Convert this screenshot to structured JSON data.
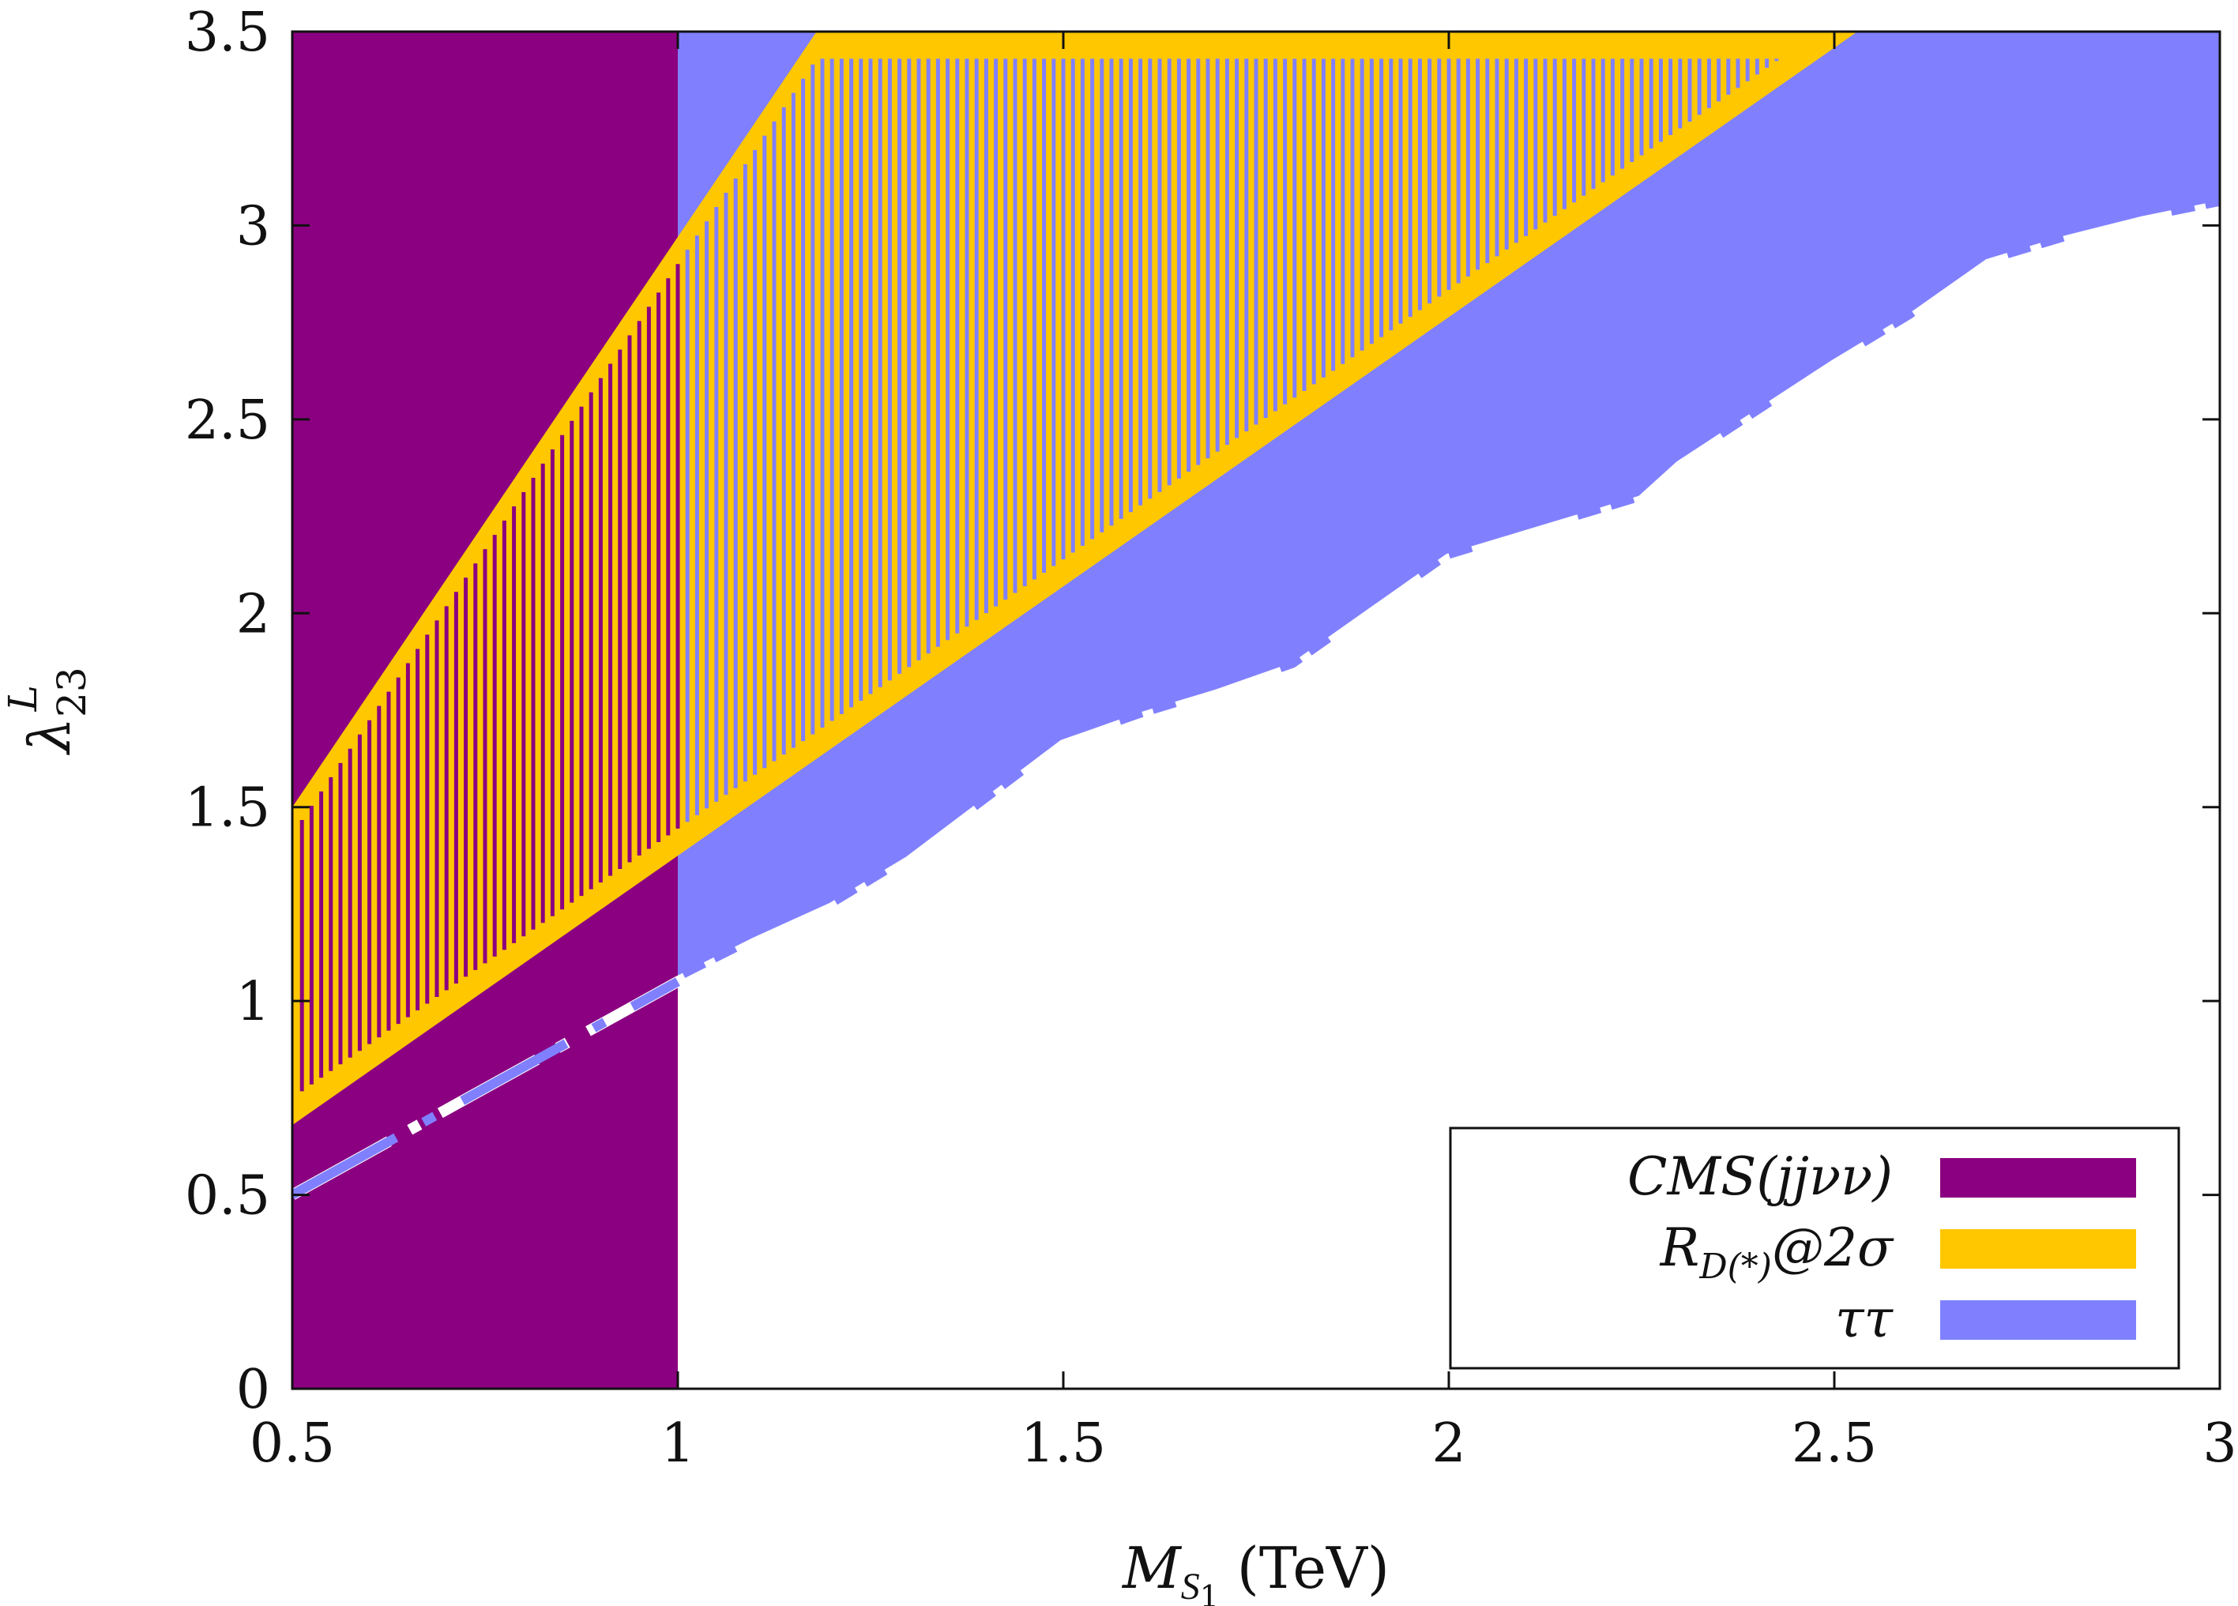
{
  "chart_data": {
    "type": "area",
    "xlabel": "M_S1 (TeV)",
    "ylabel": "λ_23^L",
    "xlim": [
      0.5,
      3
    ],
    "ylim": [
      0,
      3.5
    ],
    "xticks": [
      0.5,
      1,
      1.5,
      2,
      2.5,
      3
    ],
    "xtick_labels": [
      "0.5",
      "1",
      "1.5",
      "2",
      "2.5",
      "3"
    ],
    "yticks": [
      0,
      0.5,
      1,
      1.5,
      2,
      2.5,
      3,
      3.5
    ],
    "ytick_labels": [
      "0",
      "0.5",
      "1",
      "1.5",
      "2",
      "2.5",
      "3",
      "3.5"
    ],
    "grid": false,
    "legend_position": "bottom-right",
    "series": [
      {
        "name": "CMS(jjνν)",
        "kind": "excluded-region",
        "color": "#8b0080",
        "x_range": [
          0.5,
          1.0
        ],
        "y_range": [
          0,
          3.5
        ]
      },
      {
        "name": "R_D(*)@2σ",
        "kind": "allowed-band",
        "color": "#ffc700",
        "hatched": true,
        "lower": {
          "x": [
            0.5,
            2.53
          ],
          "y": [
            0.68,
            3.5
          ]
        },
        "upper": {
          "x": [
            0.5,
            1.18
          ],
          "y": [
            1.5,
            3.5
          ]
        }
      },
      {
        "name": "ττ",
        "kind": "excluded-region",
        "color": "#8080ff",
        "boundary": {
          "x": [
            0.5,
            0.6,
            0.7,
            0.8,
            0.9,
            1.0,
            1.1,
            1.2,
            1.3,
            1.4,
            1.5,
            1.6,
            1.7,
            1.8,
            1.9,
            2.0,
            2.1,
            2.2,
            2.25,
            2.3,
            2.4,
            2.5,
            2.6,
            2.7,
            2.8,
            2.9,
            3.0
          ],
          "y": [
            0.5,
            0.61,
            0.72,
            0.83,
            0.94,
            1.05,
            1.15,
            1.24,
            1.36,
            1.51,
            1.66,
            1.73,
            1.79,
            1.86,
            2.0,
            2.14,
            2.2,
            2.26,
            2.29,
            2.38,
            2.51,
            2.64,
            2.76,
            2.9,
            2.96,
            3.01,
            3.05
          ]
        }
      }
    ]
  },
  "legend": {
    "items": [
      {
        "label": "CMS(jjνν)",
        "color": "#8b0080"
      },
      {
        "label": "R",
        "sub": "D(*)",
        "suffix": "@2σ",
        "color": "#ffc700"
      },
      {
        "label": "ττ",
        "color": "#8080ff"
      }
    ]
  },
  "axes": {
    "x_label_main": "M",
    "x_label_sub": "S",
    "x_label_subsub": "1",
    "x_label_unit": " (TeV)",
    "y_label_main": "λ",
    "y_label_sub": "23",
    "y_label_sup": "L"
  }
}
